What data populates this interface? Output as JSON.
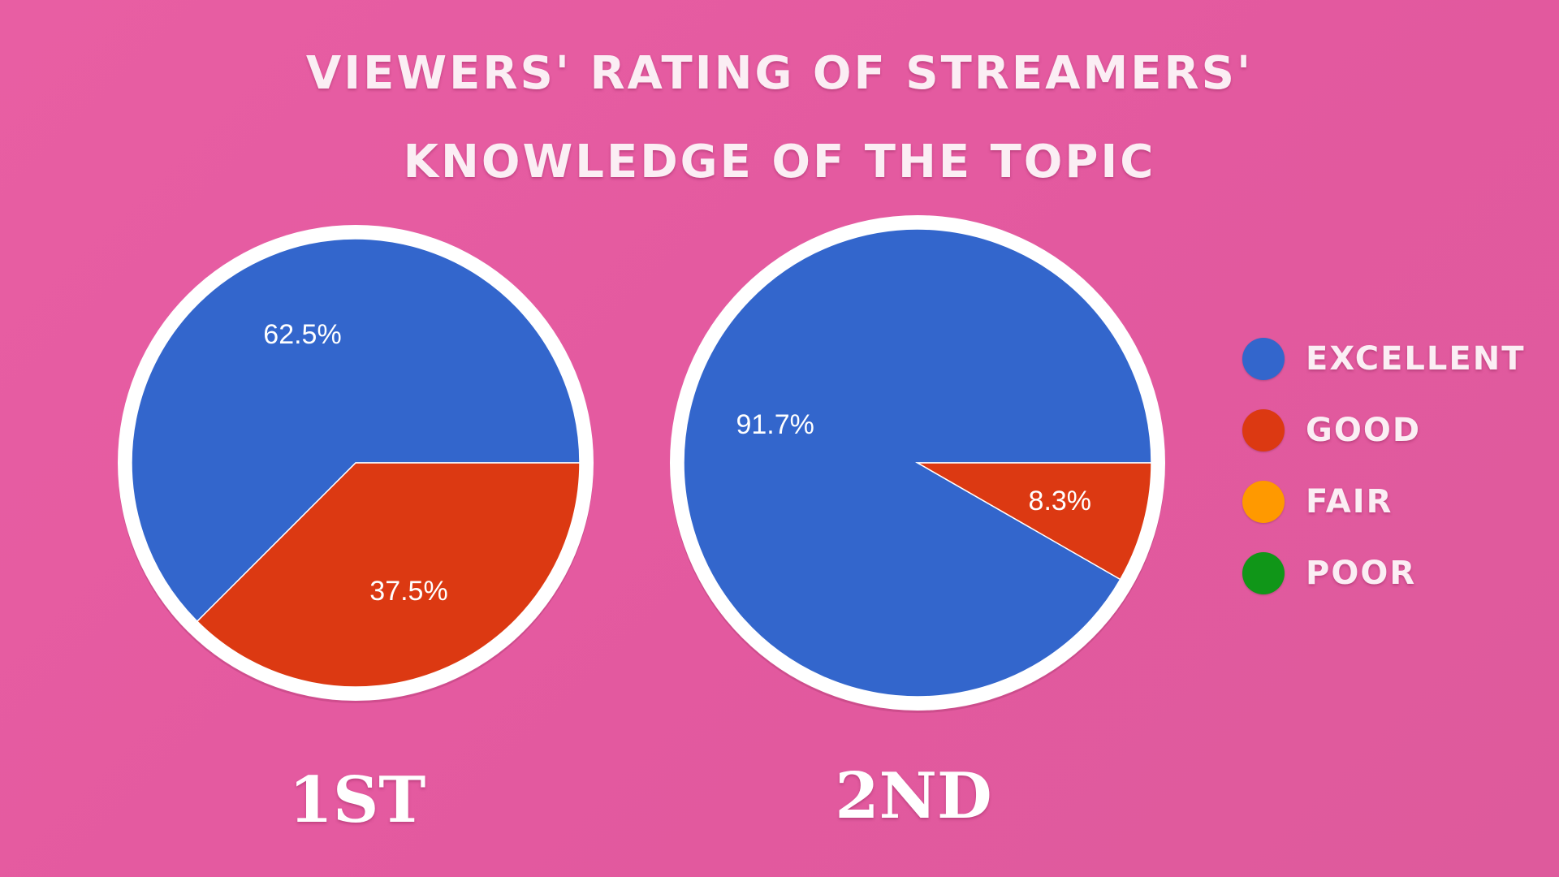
{
  "title_line_1": "VIEWERS' RATING OF STREAMERS'",
  "title_line_2": "KNOWLEDGE OF THE TOPIC",
  "colors": {
    "excellent": "#3366cc",
    "good": "#dc3912",
    "fair": "#ff9900",
    "poor": "#109618",
    "ring": "#ffffff"
  },
  "legend": [
    {
      "label": "EXCELLENT",
      "color": "#3366cc"
    },
    {
      "label": "GOOD",
      "color": "#dc3912"
    },
    {
      "label": "FAIR",
      "color": "#ff9900"
    },
    {
      "label": "POOR",
      "color": "#109618"
    }
  ],
  "chart_data": [
    {
      "type": "pie",
      "caption": "1ST",
      "categories": [
        "EXCELLENT",
        "GOOD",
        "FAIR",
        "POOR"
      ],
      "values": [
        62.5,
        37.5,
        0,
        0
      ],
      "labels": [
        "62.5%",
        "37.5%",
        "",
        ""
      ]
    },
    {
      "type": "pie",
      "caption": "2ND",
      "categories": [
        "EXCELLENT",
        "GOOD",
        "FAIR",
        "POOR"
      ],
      "values": [
        91.7,
        8.3,
        0,
        0
      ],
      "labels": [
        "91.7%",
        "8.3%",
        "",
        ""
      ]
    }
  ]
}
